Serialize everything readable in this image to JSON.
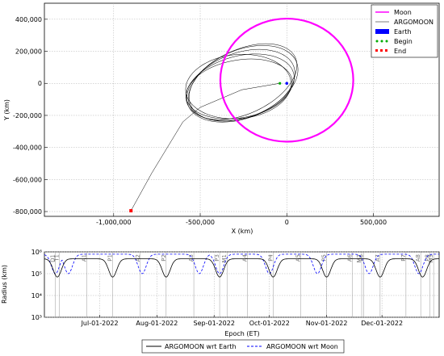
{
  "chart_data": [
    {
      "type": "scatter",
      "xlabel": "X (km)",
      "ylabel": "Y (km)",
      "xlim": [
        -1400000,
        880000
      ],
      "ylim": [
        -830000,
        500000
      ],
      "grid": true,
      "xticks": [
        -1000000,
        -500000,
        0,
        500000
      ],
      "yticks": [
        400000,
        200000,
        0,
        -200000,
        -400000,
        -600000,
        -800000
      ],
      "xtick_labels": [
        "-1,000,000",
        "-500,000",
        "0",
        "500,000"
      ],
      "ytick_labels": [
        "400,000",
        "200,000",
        "0",
        "-200,000",
        "-400,000",
        "-600,000",
        "-800,000"
      ],
      "legend_position": "top-right",
      "series": [
        {
          "name": "Moon",
          "color": "#ff00ff",
          "kind": "line",
          "center": [
            0,
            20000
          ],
          "radius": 384000
        },
        {
          "name": "ARGOMOON",
          "color": "#000000",
          "kind": "line",
          "transfer": [
            [
              -900000,
              -795000
            ],
            [
              -780000,
              -560000
            ],
            [
              -600000,
              -240000
            ],
            [
              -500000,
              -150000
            ],
            [
              -260000,
              -40000
            ],
            [
              -40000,
              0
            ]
          ],
          "orbits": [
            {
              "cx": -265000,
              "cy": -15000,
              "a": 325000,
              "b": 205000,
              "tilt_deg": -20
            },
            {
              "cx": -270000,
              "cy": -25000,
              "a": 320000,
              "b": 195000,
              "tilt_deg": -15
            },
            {
              "cx": -250000,
              "cy": 0,
              "a": 330000,
              "b": 210000,
              "tilt_deg": -22
            },
            {
              "cx": -275000,
              "cy": -35000,
              "a": 310000,
              "b": 180000,
              "tilt_deg": -10
            },
            {
              "cx": -255000,
              "cy": 10000,
              "a": 335000,
              "b": 200000,
              "tilt_deg": -25
            },
            {
              "cx": -280000,
              "cy": -20000,
              "a": 305000,
              "b": 200000,
              "tilt_deg": -5
            }
          ]
        },
        {
          "name": "Earth",
          "color": "#0000ff",
          "kind": "marker",
          "points": [
            [
              0,
              0
            ]
          ]
        },
        {
          "name": "Begin",
          "color": "#00aa00",
          "kind": "marker",
          "points": [
            [
              -40000,
              0
            ]
          ]
        },
        {
          "name": "End",
          "color": "#ff0000",
          "kind": "marker",
          "points": [
            [
              -900000,
              -795000
            ]
          ]
        }
      ]
    },
    {
      "type": "line",
      "xlabel": "Epoch (ET)",
      "ylabel": "Radius (km)",
      "yscale": "log",
      "ylim": [
        1000,
        1000000
      ],
      "xlim": [
        "2022-06-01",
        "2023-01-01"
      ],
      "yticks": [
        1000,
        10000,
        100000,
        1000000
      ],
      "ytick_labels": [
        "10³",
        "10⁴",
        "10⁵",
        "10⁶"
      ],
      "xticks": [
        "2022-07-01",
        "2022-08-01",
        "2022-09-01",
        "2022-10-01",
        "2022-11-01",
        "2022-12-01"
      ],
      "xtick_labels": [
        "Jul-01-2022",
        "Aug-01-2022",
        "Sep-01-2022",
        "Oct-01-2022",
        "Nov-01-2022",
        "Dec-01-2022"
      ],
      "grid": true,
      "legend_position": "bottom",
      "series": [
        {
          "name": "ARGOMOON wrt Earth",
          "color": "#000000",
          "style": "solid",
          "apogee": 480000,
          "perigee": 70000,
          "perigee_dates": [
            "2022-06-08",
            "2022-07-08",
            "2022-08-06",
            "2022-09-04",
            "2022-10-03",
            "2022-11-01",
            "2022-11-30",
            "2022-12-23"
          ]
        },
        {
          "name": "ARGOMOON wrt Moon",
          "color": "#0000ff",
          "style": "dashed",
          "max": 780000,
          "min": 100000,
          "min_dates": [
            "2022-06-07",
            "2022-06-14",
            "2022-07-24",
            "2022-08-24",
            "2022-09-04",
            "2022-10-01",
            "2022-10-27",
            "2022-11-24",
            "2022-12-21"
          ]
        }
      ],
      "events": [
        {
          "label": "D1",
          "date": "2022-06-07"
        },
        {
          "label": "T1",
          "date": "2022-06-09"
        },
        {
          "label": "A1",
          "date": "2022-06-24"
        },
        {
          "label": "P1",
          "date": "2022-07-08"
        },
        {
          "label": "A2",
          "date": "2022-07-23"
        },
        {
          "label": "P2",
          "date": "2022-08-06"
        },
        {
          "label": "A3",
          "date": "2022-08-21"
        },
        {
          "label": "P3",
          "date": "2022-09-04"
        },
        {
          "label": "M1",
          "date": "2022-09-08"
        },
        {
          "label": "A4",
          "date": "2022-09-19"
        },
        {
          "label": "P4",
          "date": "2022-10-03"
        },
        {
          "label": "A5",
          "date": "2022-10-18"
        },
        {
          "label": "P5",
          "date": "2022-11-01"
        },
        {
          "label": "A6",
          "date": "2022-11-15"
        },
        {
          "label": "M2",
          "date": "2022-11-20"
        },
        {
          "label": "P6",
          "date": "2022-11-21"
        },
        {
          "label": "A7",
          "date": "2022-11-30"
        },
        {
          "label": "P7",
          "date": "2022-12-14"
        },
        {
          "label": "A8",
          "date": "2022-12-22"
        },
        {
          "label": "P8",
          "date": "2022-12-27"
        },
        {
          "label": "M3",
          "date": "2022-12-29"
        }
      ]
    }
  ]
}
